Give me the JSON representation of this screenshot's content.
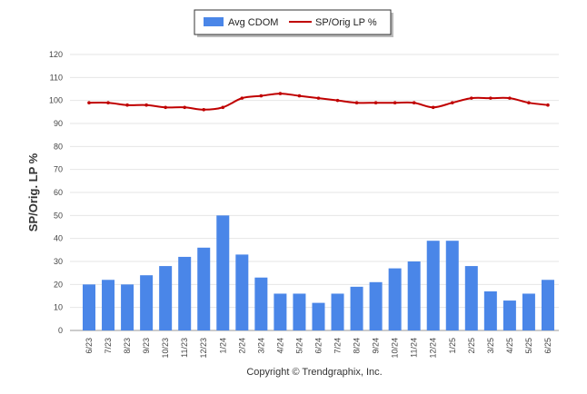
{
  "chart_data": {
    "type": "bar",
    "categories": [
      "6/23",
      "7/23",
      "8/23",
      "9/23",
      "10/23",
      "11/23",
      "12/23",
      "1/24",
      "2/24",
      "3/24",
      "4/24",
      "5/24",
      "6/24",
      "7/24",
      "8/24",
      "9/24",
      "10/24",
      "11/24",
      "12/24",
      "1/25",
      "2/25",
      "3/25",
      "4/25",
      "5/25",
      "6/25"
    ],
    "series": [
      {
        "name": "Avg CDOM",
        "type": "bar",
        "color": "#4a86e8",
        "values": [
          20,
          22,
          20,
          24,
          28,
          32,
          36,
          50,
          33,
          23,
          16,
          16,
          12,
          16,
          19,
          21,
          27,
          30,
          39,
          39,
          28,
          17,
          13,
          16,
          22
        ]
      },
      {
        "name": "SP/Orig LP %",
        "type": "line",
        "color": "#c00000",
        "values": [
          99,
          99,
          98,
          98,
          97,
          97,
          96,
          97,
          101,
          102,
          103,
          102,
          101,
          100,
          99,
          99,
          99,
          99,
          97,
          99,
          101,
          101,
          101,
          99,
          98
        ]
      }
    ],
    "ylabel": "SP/Orig. LP %",
    "xlabel": "",
    "ylim": [
      0,
      120
    ],
    "yticks": [
      "0",
      "10",
      "20",
      "30",
      "40",
      "50",
      "60",
      "70",
      "80",
      "90",
      "100",
      "110",
      "120"
    ],
    "grid": true,
    "legend": "top-center"
  },
  "credit": "Copyright © Trendgraphix, Inc."
}
